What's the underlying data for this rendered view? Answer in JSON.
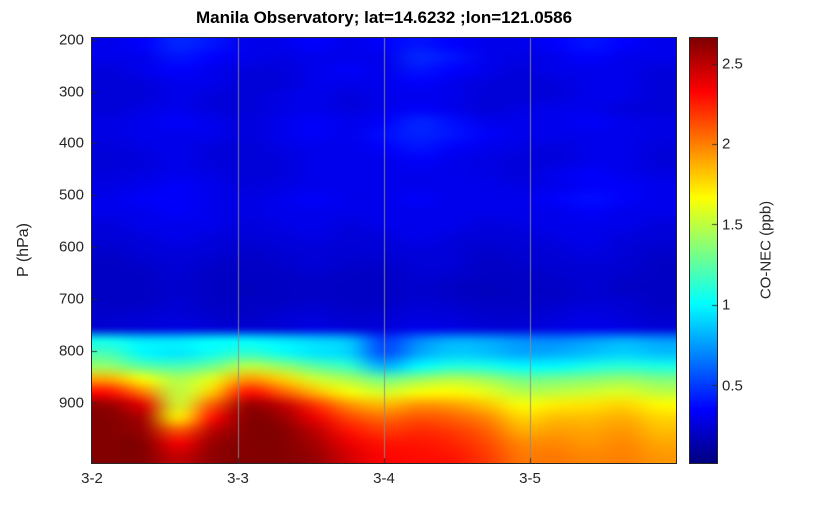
{
  "chart_data": {
    "type": "heatmap",
    "title": "Manila Observatory; lat=14.6232 ;lon=121.0586",
    "xlabel": "",
    "ylabel": "P (hPa)",
    "colorbar_label": "CO-NEC (ppb)",
    "colormap": "jet",
    "clim": [
      0.02,
      2.66
    ],
    "x_axis": {
      "range_days": [
        0,
        4
      ],
      "ticks": [
        {
          "label": "3-2",
          "day": 0
        },
        {
          "label": "3-3",
          "day": 1
        },
        {
          "label": "3-4",
          "day": 2
        },
        {
          "label": "3-5",
          "day": 3
        }
      ],
      "gridline_days": [
        1,
        2,
        3
      ]
    },
    "y_axis": {
      "unit": "hPa",
      "range": [
        197,
        1015
      ],
      "ticks": [
        200,
        300,
        400,
        500,
        600,
        700,
        800,
        900
      ]
    },
    "colorbar_ticks": [
      0.5,
      1,
      1.5,
      2,
      2.5
    ],
    "time_step_hours": 6,
    "pressure_levels": [
      200,
      225,
      250,
      275,
      300,
      325,
      350,
      375,
      400,
      425,
      450,
      475,
      500,
      525,
      550,
      575,
      600,
      625,
      650,
      675,
      700,
      725,
      750,
      775,
      800,
      825,
      850,
      875,
      900,
      925,
      950,
      975,
      1000
    ],
    "values": [
      [
        0.3,
        0.35,
        0.45,
        0.4,
        0.3,
        0.3,
        0.35,
        0.3,
        0.35,
        0.4,
        0.35,
        0.3,
        0.3,
        0.35,
        0.4,
        0.35,
        0.3
      ],
      [
        0.3,
        0.3,
        0.4,
        0.35,
        0.3,
        0.28,
        0.3,
        0.3,
        0.3,
        0.45,
        0.4,
        0.3,
        0.28,
        0.3,
        0.35,
        0.3,
        0.3
      ],
      [
        0.26,
        0.3,
        0.35,
        0.3,
        0.26,
        0.26,
        0.3,
        0.34,
        0.3,
        0.4,
        0.35,
        0.3,
        0.26,
        0.3,
        0.3,
        0.3,
        0.26
      ],
      [
        0.25,
        0.26,
        0.3,
        0.3,
        0.25,
        0.25,
        0.3,
        0.3,
        0.3,
        0.35,
        0.3,
        0.26,
        0.25,
        0.26,
        0.3,
        0.3,
        0.25
      ],
      [
        0.25,
        0.25,
        0.3,
        0.26,
        0.25,
        0.28,
        0.3,
        0.26,
        0.3,
        0.3,
        0.3,
        0.25,
        0.25,
        0.26,
        0.3,
        0.3,
        0.25
      ],
      [
        0.25,
        0.28,
        0.3,
        0.26,
        0.25,
        0.28,
        0.3,
        0.26,
        0.3,
        0.34,
        0.3,
        0.25,
        0.28,
        0.3,
        0.3,
        0.26,
        0.25
      ],
      [
        0.28,
        0.3,
        0.34,
        0.3,
        0.26,
        0.3,
        0.34,
        0.3,
        0.34,
        0.44,
        0.38,
        0.3,
        0.3,
        0.3,
        0.34,
        0.3,
        0.28
      ],
      [
        0.28,
        0.3,
        0.3,
        0.3,
        0.26,
        0.3,
        0.34,
        0.3,
        0.38,
        0.44,
        0.4,
        0.34,
        0.3,
        0.3,
        0.3,
        0.3,
        0.28
      ],
      [
        0.26,
        0.28,
        0.3,
        0.26,
        0.25,
        0.28,
        0.3,
        0.3,
        0.34,
        0.4,
        0.34,
        0.3,
        0.28,
        0.26,
        0.3,
        0.3,
        0.26
      ],
      [
        0.25,
        0.26,
        0.3,
        0.26,
        0.25,
        0.26,
        0.3,
        0.3,
        0.3,
        0.34,
        0.3,
        0.28,
        0.26,
        0.26,
        0.3,
        0.3,
        0.25
      ],
      [
        0.26,
        0.28,
        0.3,
        0.28,
        0.25,
        0.26,
        0.3,
        0.3,
        0.3,
        0.3,
        0.3,
        0.28,
        0.26,
        0.3,
        0.34,
        0.3,
        0.28
      ],
      [
        0.28,
        0.3,
        0.34,
        0.3,
        0.26,
        0.28,
        0.3,
        0.3,
        0.3,
        0.3,
        0.3,
        0.3,
        0.28,
        0.3,
        0.34,
        0.34,
        0.3
      ],
      [
        0.3,
        0.34,
        0.34,
        0.3,
        0.28,
        0.3,
        0.34,
        0.3,
        0.3,
        0.34,
        0.3,
        0.3,
        0.3,
        0.34,
        0.38,
        0.34,
        0.3
      ],
      [
        0.3,
        0.3,
        0.34,
        0.3,
        0.28,
        0.3,
        0.3,
        0.3,
        0.3,
        0.3,
        0.3,
        0.3,
        0.3,
        0.3,
        0.34,
        0.3,
        0.3
      ],
      [
        0.26,
        0.3,
        0.3,
        0.3,
        0.26,
        0.28,
        0.3,
        0.26,
        0.3,
        0.3,
        0.3,
        0.26,
        0.28,
        0.3,
        0.3,
        0.3,
        0.26
      ],
      [
        0.25,
        0.26,
        0.3,
        0.26,
        0.25,
        0.26,
        0.28,
        0.25,
        0.26,
        0.3,
        0.26,
        0.25,
        0.25,
        0.28,
        0.3,
        0.26,
        0.25
      ],
      [
        0.22,
        0.25,
        0.26,
        0.25,
        0.22,
        0.24,
        0.25,
        0.24,
        0.25,
        0.26,
        0.25,
        0.22,
        0.24,
        0.25,
        0.28,
        0.25,
        0.22
      ],
      [
        0.2,
        0.22,
        0.25,
        0.22,
        0.2,
        0.22,
        0.25,
        0.22,
        0.22,
        0.25,
        0.25,
        0.2,
        0.22,
        0.24,
        0.25,
        0.24,
        0.2
      ],
      [
        0.2,
        0.2,
        0.24,
        0.2,
        0.2,
        0.2,
        0.22,
        0.2,
        0.2,
        0.24,
        0.22,
        0.2,
        0.2,
        0.22,
        0.24,
        0.22,
        0.2
      ],
      [
        0.2,
        0.2,
        0.22,
        0.2,
        0.18,
        0.2,
        0.2,
        0.2,
        0.2,
        0.22,
        0.2,
        0.18,
        0.2,
        0.2,
        0.24,
        0.2,
        0.2
      ],
      [
        0.2,
        0.2,
        0.24,
        0.2,
        0.2,
        0.2,
        0.22,
        0.2,
        0.2,
        0.24,
        0.22,
        0.2,
        0.2,
        0.22,
        0.24,
        0.24,
        0.2
      ],
      [
        0.22,
        0.24,
        0.25,
        0.22,
        0.2,
        0.24,
        0.25,
        0.22,
        0.24,
        0.26,
        0.25,
        0.22,
        0.22,
        0.25,
        0.28,
        0.25,
        0.22
      ],
      [
        0.24,
        0.25,
        0.28,
        0.25,
        0.24,
        0.25,
        0.28,
        0.25,
        0.25,
        0.3,
        0.28,
        0.25,
        0.25,
        0.28,
        0.3,
        0.28,
        0.25
      ],
      [
        1.05,
        0.95,
        0.95,
        1.0,
        1.0,
        0.95,
        0.9,
        0.85,
        0.5,
        0.7,
        0.8,
        0.78,
        0.72,
        0.7,
        0.75,
        0.8,
        0.75
      ],
      [
        1.2,
        1.0,
        0.95,
        1.05,
        1.15,
        1.05,
        0.95,
        0.9,
        0.55,
        0.78,
        0.88,
        0.85,
        0.78,
        0.8,
        0.85,
        0.9,
        0.85
      ],
      [
        1.4,
        1.25,
        1.2,
        1.3,
        1.5,
        1.4,
        1.25,
        1.15,
        0.8,
        1.0,
        1.1,
        1.08,
        1.0,
        1.0,
        1.08,
        1.12,
        1.08
      ],
      [
        1.9,
        1.65,
        1.45,
        1.6,
        1.95,
        1.8,
        1.55,
        1.45,
        1.3,
        1.4,
        1.48,
        1.42,
        1.3,
        1.32,
        1.36,
        1.4,
        1.34
      ],
      [
        2.3,
        2.0,
        1.5,
        1.8,
        2.3,
        2.1,
        1.85,
        1.65,
        1.55,
        1.65,
        1.68,
        1.6,
        1.48,
        1.5,
        1.54,
        1.58,
        1.5
      ],
      [
        2.6,
        2.4,
        1.55,
        2.1,
        2.6,
        2.5,
        2.2,
        1.95,
        1.85,
        1.95,
        1.92,
        1.82,
        1.65,
        1.72,
        1.74,
        1.78,
        1.68
      ],
      [
        2.65,
        2.55,
        1.7,
        2.3,
        2.65,
        2.6,
        2.38,
        2.15,
        2.05,
        2.12,
        2.08,
        1.98,
        1.78,
        1.84,
        1.84,
        1.88,
        1.78
      ],
      [
        2.65,
        2.6,
        2.1,
        2.5,
        2.65,
        2.65,
        2.5,
        2.28,
        2.18,
        2.22,
        2.18,
        2.08,
        1.88,
        1.92,
        1.9,
        1.94,
        1.84
      ],
      [
        2.65,
        2.65,
        2.35,
        2.6,
        2.65,
        2.65,
        2.56,
        2.38,
        2.28,
        2.28,
        2.24,
        2.14,
        1.98,
        1.98,
        1.94,
        1.98,
        1.9
      ],
      [
        2.65,
        2.65,
        2.48,
        2.62,
        2.65,
        2.65,
        2.6,
        2.44,
        2.32,
        2.3,
        2.28,
        2.18,
        2.02,
        2.02,
        1.98,
        2.0,
        1.94
      ]
    ]
  },
  "colors": {
    "background": "#ffffff",
    "gridline": "#8c8c8c",
    "axis_text": "#262626",
    "title_text": "#000000",
    "plot_border": "#262626"
  }
}
